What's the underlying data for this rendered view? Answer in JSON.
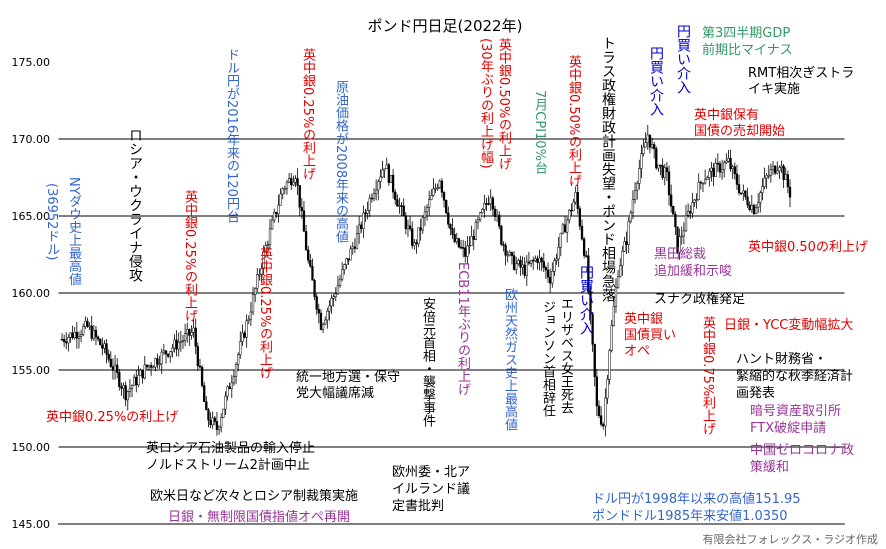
{
  "chart_data": {
    "type": "candlestick",
    "title": "ポンド円日足(2022年)",
    "ylim": [
      145.0,
      175.0
    ],
    "y_ticks": [
      "145.00",
      "150.00",
      "155.00",
      "160.00",
      "165.00",
      "170.00",
      "175.00"
    ],
    "grid": "horizontal",
    "credit": "有限会社フォレックス・ラジオ作成",
    "price_path": [
      [
        0,
        157.0
      ],
      [
        12,
        157.8
      ],
      [
        20,
        156.3
      ],
      [
        30,
        153.5
      ],
      [
        40,
        155.2
      ],
      [
        55,
        156.8
      ],
      [
        62,
        157.5
      ],
      [
        68,
        152.0
      ],
      [
        73,
        151.2
      ],
      [
        80,
        154.5
      ],
      [
        88,
        158.5
      ],
      [
        95,
        162.5
      ],
      [
        104,
        166.8
      ],
      [
        110,
        167.8
      ],
      [
        116,
        162.0
      ],
      [
        122,
        158.0
      ],
      [
        128,
        159.8
      ],
      [
        134,
        162.0
      ],
      [
        140,
        164.0
      ],
      [
        146,
        166.5
      ],
      [
        152,
        168.4
      ],
      [
        158,
        166.0
      ],
      [
        166,
        163.0
      ],
      [
        172,
        165.5
      ],
      [
        178,
        167.5
      ],
      [
        184,
        163.5
      ],
      [
        190,
        162.5
      ],
      [
        196,
        164.5
      ],
      [
        202,
        166.5
      ],
      [
        207,
        163.5
      ],
      [
        212,
        162.0
      ],
      [
        218,
        161.5
      ],
      [
        224,
        162.3
      ],
      [
        230,
        161.0
      ],
      [
        236,
        164.0
      ],
      [
        242,
        166.3
      ],
      [
        247,
        162.0
      ],
      [
        252,
        152.5
      ],
      [
        255,
        151.5
      ],
      [
        258,
        156.5
      ],
      [
        262,
        161.5
      ],
      [
        266,
        163.5
      ],
      [
        270,
        167.0
      ],
      [
        276,
        170.3
      ],
      [
        280,
        168.5
      ],
      [
        285,
        167.5
      ],
      [
        290,
        163.0
      ],
      [
        296,
        165.5
      ],
      [
        302,
        167.5
      ],
      [
        308,
        168.0
      ],
      [
        314,
        168.5
      ],
      [
        320,
        166.5
      ],
      [
        326,
        165.5
      ],
      [
        332,
        167.5
      ],
      [
        338,
        168.5
      ],
      [
        343,
        166.5
      ]
    ],
    "annotations": [
      {
        "id": "a1",
        "text": "英中銀0.25%の利上げ",
        "color": "#e00000"
      },
      {
        "id": "a2",
        "text": "英ロシア石油製品の輸入停止",
        "color": "#000000"
      },
      {
        "id": "a3",
        "text": "ノルドストリーム2計画中止",
        "color": "#000000"
      },
      {
        "id": "a4",
        "text": "欧米日など次々とロシア制裁策実施",
        "color": "#000000"
      },
      {
        "id": "a5",
        "text": "日銀・無制限国債指値オペ再開",
        "color": "#993399"
      },
      {
        "id": "a6",
        "text": "NYダウ史上最高値",
        "color": "#3366cc"
      },
      {
        "id": "a7",
        "text": "(36952ドル)",
        "color": "#3366cc"
      },
      {
        "id": "a8",
        "text": "ロシア・ウクライナ侵攻",
        "color": "#000000"
      },
      {
        "id": "a9",
        "text": "英中銀0.25%の利上げ",
        "color": "#e00000"
      },
      {
        "id": "a10",
        "text": "ドル円が2016年来の120円台",
        "color": "#3366cc"
      },
      {
        "id": "a11",
        "text": "英中銀0.25%の利上げ",
        "color": "#e00000"
      },
      {
        "id": "a12",
        "text": "英中銀0.25%の利上げ",
        "color": "#e00000"
      },
      {
        "id": "a13",
        "text": "原油価格が2008年来の高値",
        "color": "#3366cc"
      },
      {
        "id": "a14",
        "text": "統一地方選・保守",
        "color": "#000000"
      },
      {
        "id": "a15",
        "text": "党大幅議席減",
        "color": "#000000"
      },
      {
        "id": "a16",
        "text": "安倍元首相・襲撃事件",
        "color": "#000000"
      },
      {
        "id": "a17",
        "text": "欧州委・北ア",
        "color": "#000000"
      },
      {
        "id": "a18",
        "text": "イルランド議",
        "color": "#000000"
      },
      {
        "id": "a19",
        "text": "定書批判",
        "color": "#000000"
      },
      {
        "id": "a20",
        "text": "ECB11年ぶりの利上げ",
        "color": "#993399"
      },
      {
        "id": "a21",
        "text": "英中銀0.50%の利上げ",
        "color": "#e00000"
      },
      {
        "id": "a22",
        "text": "(30年ぶりの利上げ幅)",
        "color": "#e00000"
      },
      {
        "id": "a23",
        "text": "欧州天然ガス史上最高値",
        "color": "#3366cc"
      },
      {
        "id": "a24",
        "text": "7月CPI10%台",
        "color": "#339966"
      },
      {
        "id": "a25",
        "text": "英中銀0.50%の利上げ",
        "color": "#e00000"
      },
      {
        "id": "a26",
        "text": "ジョンソン首相辞任",
        "color": "#000000"
      },
      {
        "id": "a27",
        "text": "エリザベス女王死去",
        "color": "#000000"
      },
      {
        "id": "a28",
        "text": "トラス政権財政計画失望・ポンド相場急落",
        "color": "#000000"
      },
      {
        "id": "a29",
        "text": "円買い介入",
        "color": "#0000cc"
      },
      {
        "id": "a30",
        "text": "英中銀",
        "color": "#e00000"
      },
      {
        "id": "a31",
        "text": "国債買い",
        "color": "#e00000"
      },
      {
        "id": "a32",
        "text": "オペ",
        "color": "#e00000"
      },
      {
        "id": "a33",
        "text": "円買い介入",
        "color": "#0000cc"
      },
      {
        "id": "a34",
        "text": "円買い介入",
        "color": "#0000cc"
      },
      {
        "id": "a35",
        "text": "第3四半期GDP",
        "color": "#339966"
      },
      {
        "id": "a36",
        "text": "前期比マイナス",
        "color": "#339966"
      },
      {
        "id": "a37",
        "text": "RMT相次ぎストラ",
        "color": "#000000"
      },
      {
        "id": "a38",
        "text": "イキ実施",
        "color": "#000000"
      },
      {
        "id": "a39",
        "text": "英中銀保有",
        "color": "#e00000"
      },
      {
        "id": "a40",
        "text": "国債の売却開始",
        "color": "#e00000"
      },
      {
        "id": "a41",
        "text": "英中銀0.50の利上げ",
        "color": "#e00000"
      },
      {
        "id": "a42",
        "text": "黒田総裁",
        "color": "#993399"
      },
      {
        "id": "a43",
        "text": "追加緩和示唆",
        "color": "#993399"
      },
      {
        "id": "a44",
        "text": "スナク政権発足",
        "color": "#000000"
      },
      {
        "id": "a45",
        "text": "日銀・YCC変動幅拡大",
        "color": "#e00000"
      },
      {
        "id": "a46",
        "text": "英中銀0.75%利上げ",
        "color": "#e00000"
      },
      {
        "id": "a47",
        "text": "ハント財務省・",
        "color": "#000000"
      },
      {
        "id": "a48",
        "text": "緊縮的な秋季経済計",
        "color": "#000000"
      },
      {
        "id": "a49",
        "text": "画発表",
        "color": "#000000"
      },
      {
        "id": "a50",
        "text": "暗号資産取引所",
        "color": "#993399"
      },
      {
        "id": "a51",
        "text": "FTX破綻申請",
        "color": "#993399"
      },
      {
        "id": "a52",
        "text": "中国ゼロコロナ政",
        "color": "#993399"
      },
      {
        "id": "a53",
        "text": "策緩和",
        "color": "#993399"
      },
      {
        "id": "a54",
        "text": "ドル円が1998年以来の高値151.95",
        "color": "#3366cc"
      },
      {
        "id": "a55",
        "text": "ポンドドル1985年来安値1.0350",
        "color": "#3366cc"
      }
    ]
  }
}
